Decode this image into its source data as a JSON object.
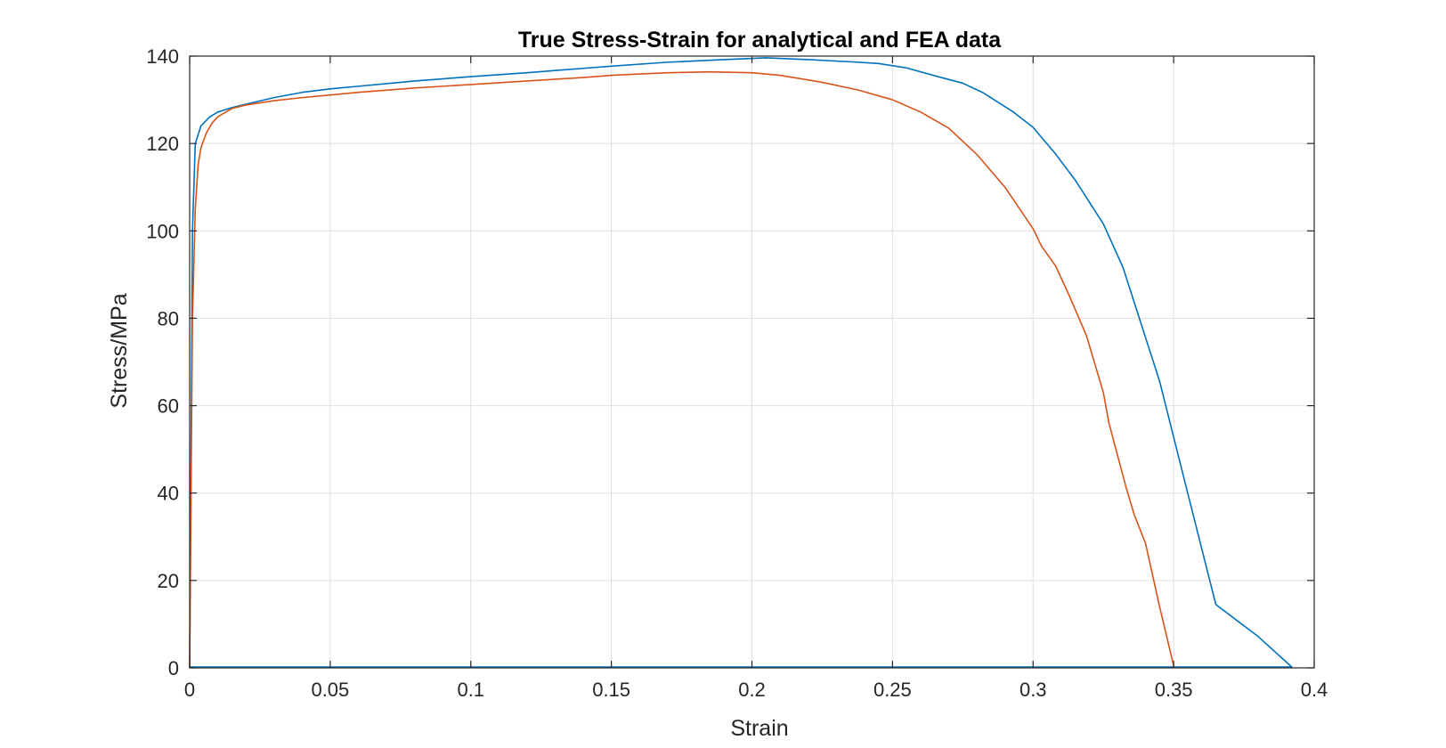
{
  "chart_data": {
    "type": "line",
    "title": "True Stress-Strain for analytical and FEA data",
    "xlabel": "Strain",
    "ylabel": "Stress/MPa",
    "xlim": [
      0,
      0.4
    ],
    "ylim": [
      0,
      140
    ],
    "xticks": [
      0,
      0.05,
      0.1,
      0.15,
      0.2,
      0.25,
      0.3,
      0.35,
      0.4
    ],
    "xtick_labels": [
      "0",
      "0.05",
      "0.1",
      "0.15",
      "0.2",
      "0.25",
      "0.3",
      "0.35",
      "0.4"
    ],
    "yticks": [
      0,
      20,
      40,
      60,
      80,
      100,
      120,
      140
    ],
    "ytick_labels": [
      "0",
      "20",
      "40",
      "60",
      "80",
      "100",
      "120",
      "140"
    ],
    "grid": true,
    "legend": "none",
    "series": [
      {
        "color": "#0072bd",
        "points": [
          [
            0,
            0
          ],
          [
            0.001,
            100
          ],
          [
            0.002,
            120
          ],
          [
            0.004,
            124
          ],
          [
            0.007,
            126
          ],
          [
            0.01,
            127.2
          ],
          [
            0.015,
            128.2
          ],
          [
            0.02,
            129
          ],
          [
            0.03,
            130.5
          ],
          [
            0.04,
            131.7
          ],
          [
            0.05,
            132.5
          ],
          [
            0.06,
            133.1
          ],
          [
            0.07,
            133.7
          ],
          [
            0.08,
            134.3
          ],
          [
            0.09,
            134.8
          ],
          [
            0.1,
            135.3
          ],
          [
            0.12,
            136.2
          ],
          [
            0.14,
            137.2
          ],
          [
            0.15,
            137.7
          ],
          [
            0.17,
            138.6
          ],
          [
            0.19,
            139.2
          ],
          [
            0.205,
            139.6
          ],
          [
            0.22,
            139.2
          ],
          [
            0.235,
            138.7
          ],
          [
            0.245,
            138.3
          ],
          [
            0.255,
            137.3
          ],
          [
            0.265,
            135.5
          ],
          [
            0.275,
            133.8
          ],
          [
            0.282,
            131.7
          ],
          [
            0.293,
            127.2
          ],
          [
            0.3,
            123.7
          ],
          [
            0.308,
            117.6
          ],
          [
            0.315,
            111.6
          ],
          [
            0.325,
            101.6
          ],
          [
            0.332,
            91.6
          ],
          [
            0.345,
            65.6
          ],
          [
            0.355,
            40
          ],
          [
            0.365,
            14.5
          ],
          [
            0.38,
            7.2
          ],
          [
            0.392,
            0.2
          ],
          [
            0.3,
            0.2
          ],
          [
            0.2,
            0.2
          ],
          [
            0.1,
            0.2
          ],
          [
            0,
            0.2
          ]
        ]
      },
      {
        "color": "#d95319",
        "points": [
          [
            0,
            0
          ],
          [
            0.001,
            80
          ],
          [
            0.002,
            105
          ],
          [
            0.003,
            115
          ],
          [
            0.004,
            119
          ],
          [
            0.006,
            122.5
          ],
          [
            0.008,
            124.7
          ],
          [
            0.01,
            126.1
          ],
          [
            0.015,
            128
          ],
          [
            0.02,
            128.8
          ],
          [
            0.03,
            129.8
          ],
          [
            0.04,
            130.5
          ],
          [
            0.05,
            131.1
          ],
          [
            0.06,
            131.7
          ],
          [
            0.08,
            132.7
          ],
          [
            0.1,
            133.5
          ],
          [
            0.12,
            134.3
          ],
          [
            0.14,
            135.1
          ],
          [
            0.15,
            135.6
          ],
          [
            0.17,
            136.2
          ],
          [
            0.185,
            136.4
          ],
          [
            0.2,
            136.2
          ],
          [
            0.21,
            135.6
          ],
          [
            0.225,
            134
          ],
          [
            0.238,
            132.2
          ],
          [
            0.25,
            130
          ],
          [
            0.26,
            127.2
          ],
          [
            0.27,
            123.5
          ],
          [
            0.28,
            117.5
          ],
          [
            0.29,
            110
          ],
          [
            0.3,
            100.5
          ],
          [
            0.303,
            96.5
          ],
          [
            0.308,
            92
          ],
          [
            0.313,
            85
          ],
          [
            0.319,
            76
          ],
          [
            0.322,
            69.5
          ],
          [
            0.325,
            63
          ],
          [
            0.327,
            56
          ],
          [
            0.333,
            41.5
          ],
          [
            0.336,
            35
          ],
          [
            0.34,
            28.5
          ],
          [
            0.345,
            14
          ],
          [
            0.35,
            0.5
          ],
          [
            0.35,
            0
          ]
        ]
      }
    ]
  }
}
